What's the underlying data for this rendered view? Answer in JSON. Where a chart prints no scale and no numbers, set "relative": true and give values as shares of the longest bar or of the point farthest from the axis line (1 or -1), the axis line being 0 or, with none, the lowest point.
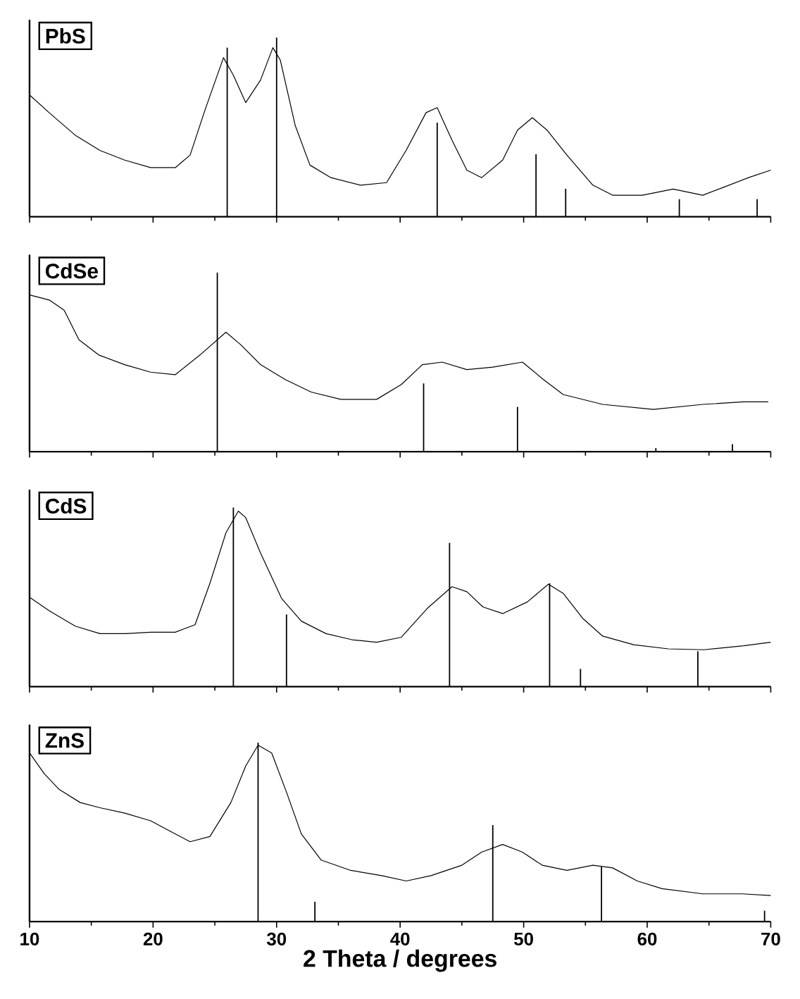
{
  "chart_data": [
    {
      "type": "line",
      "title": "PbS",
      "relative": true,
      "xlim": [
        10,
        70
      ],
      "xticks": [
        10,
        20,
        30,
        40,
        50,
        60,
        70
      ],
      "tick_labels": false,
      "series": [
        {
          "color": "#000000",
          "x": [
            10,
            11.6,
            13.7,
            15.7,
            17.7,
            19.8,
            21.8,
            23.0,
            24.2,
            25.7,
            26.5,
            27.5,
            28.7,
            29.7,
            30.3,
            31.5,
            32.7,
            34.4,
            36.8,
            38.9,
            40.5,
            42.1,
            43.0,
            44.2,
            45.4,
            46.6,
            48.3,
            49.5,
            50.7,
            51.9,
            53.5,
            55.6,
            57.2,
            59.6,
            62.1,
            64.5,
            66.1,
            68.2,
            70
          ],
          "values": [
            0.68,
            0.58,
            0.455,
            0.37,
            0.316,
            0.274,
            0.274,
            0.344,
            0.595,
            0.888,
            0.79,
            0.637,
            0.763,
            0.944,
            0.874,
            0.511,
            0.288,
            0.218,
            0.176,
            0.19,
            0.372,
            0.581,
            0.609,
            0.427,
            0.26,
            0.218,
            0.316,
            0.483,
            0.553,
            0.483,
            0.344,
            0.176,
            0.12,
            0.12,
            0.154,
            0.12,
            0.162,
            0.218,
            0.26
          ]
        },
        {
          "type": "bar",
          "color": "#000000",
          "x": [
            26.0,
            30.0,
            43.0,
            51.0,
            53.4,
            62.6,
            68.9
          ],
          "values": [
            0.944,
            1.0,
            0.525,
            0.349,
            0.156,
            0.098,
            0.098
          ]
        }
      ]
    },
    {
      "type": "line",
      "title": "CdSe",
      "relative": true,
      "xlim": [
        10,
        70
      ],
      "xticks": [
        10,
        20,
        30,
        40,
        50,
        60,
        70
      ],
      "tick_labels": false,
      "series": [
        {
          "color": "#000000",
          "x": [
            10,
            11.6,
            12.8,
            14,
            15.6,
            17.7,
            19.8,
            21.8,
            23.8,
            25.9,
            27.1,
            28.7,
            30.7,
            32.8,
            35.2,
            38.1,
            40.1,
            41.8,
            43.4,
            45.4,
            47.5,
            49.9,
            51.6,
            53.2,
            56.4,
            60.5,
            64.5,
            67.8,
            69.8
          ],
          "values": [
            0.875,
            0.847,
            0.79,
            0.625,
            0.54,
            0.486,
            0.444,
            0.43,
            0.54,
            0.667,
            0.597,
            0.486,
            0.403,
            0.333,
            0.292,
            0.292,
            0.375,
            0.486,
            0.5,
            0.458,
            0.472,
            0.5,
            0.403,
            0.319,
            0.264,
            0.236,
            0.264,
            0.278,
            0.278
          ]
        },
        {
          "type": "bar",
          "color": "#000000",
          "x": [
            25.2,
            41.9,
            49.5,
            60.7,
            66.9
          ],
          "values": [
            1.0,
            0.381,
            0.25,
            0.02,
            0.042
          ]
        }
      ]
    },
    {
      "type": "line",
      "title": "CdS",
      "relative": true,
      "xlim": [
        10,
        70
      ],
      "xticks": [
        10,
        20,
        30,
        40,
        50,
        60,
        70
      ],
      "tick_labels": false,
      "series": [
        {
          "color": "#000000",
          "x": [
            10,
            11.6,
            13.7,
            15.7,
            17.8,
            19.8,
            21.8,
            23.4,
            24.6,
            25.9,
            26.9,
            27.5,
            28.7,
            30.4,
            32,
            34,
            36.1,
            38.1,
            40.1,
            42.2,
            44.2,
            45.4,
            46.7,
            48.3,
            50.3,
            52,
            53.2,
            54.8,
            56.4,
            58.9,
            61.7,
            64.6,
            67.8,
            70
          ],
          "values": [
            0.499,
            0.423,
            0.338,
            0.296,
            0.296,
            0.304,
            0.304,
            0.346,
            0.577,
            0.859,
            0.98,
            0.944,
            0.746,
            0.493,
            0.366,
            0.296,
            0.262,
            0.248,
            0.276,
            0.437,
            0.558,
            0.53,
            0.445,
            0.408,
            0.473,
            0.572,
            0.521,
            0.38,
            0.282,
            0.234,
            0.211,
            0.206,
            0.228,
            0.248
          ]
        },
        {
          "type": "bar",
          "color": "#000000",
          "x": [
            26.5,
            30.8,
            44.0,
            52.1,
            54.6,
            64.1
          ],
          "values": [
            1.0,
            0.403,
            0.803,
            0.577,
            0.099,
            0.197
          ]
        }
      ]
    },
    {
      "type": "line",
      "title": "ZnS",
      "xlabel": "2 Theta / degrees",
      "relative": true,
      "xlim": [
        10,
        70
      ],
      "xticks": [
        10,
        20,
        30,
        40,
        50,
        60,
        70
      ],
      "tick_labels": "x",
      "series": [
        {
          "color": "#000000",
          "x": [
            10,
            11.2,
            12.4,
            14.1,
            15.7,
            17.7,
            19.8,
            21.4,
            23.0,
            24.6,
            26.3,
            27.5,
            28.5,
            29.6,
            30.8,
            32,
            33.6,
            36.0,
            38.5,
            40.5,
            42.5,
            45,
            46.6,
            48.3,
            49.9,
            51.5,
            53.5,
            55.6,
            57.2,
            59.2,
            61.2,
            64.5,
            67.7,
            70
          ],
          "values": [
            0.942,
            0.825,
            0.738,
            0.665,
            0.636,
            0.606,
            0.563,
            0.504,
            0.446,
            0.475,
            0.665,
            0.869,
            0.985,
            0.942,
            0.723,
            0.49,
            0.344,
            0.286,
            0.257,
            0.227,
            0.257,
            0.315,
            0.388,
            0.431,
            0.388,
            0.315,
            0.286,
            0.315,
            0.3,
            0.227,
            0.184,
            0.155,
            0.155,
            0.146
          ]
        },
        {
          "type": "bar",
          "color": "#000000",
          "x": [
            28.5,
            33.1,
            47.5,
            56.3,
            69.5
          ],
          "values": [
            1.0,
            0.111,
            0.539,
            0.306,
            0.061
          ]
        }
      ]
    }
  ]
}
